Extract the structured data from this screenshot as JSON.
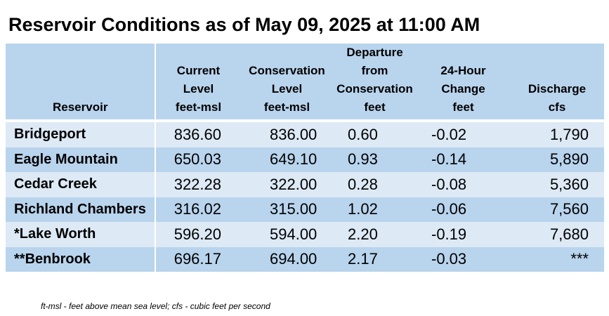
{
  "title": "Reservoir Conditions as of May 09, 2025 at 11:00 AM",
  "columns": [
    {
      "lines": [
        "Reservoir"
      ]
    },
    {
      "lines": [
        "Current",
        "Level",
        "feet-msl"
      ]
    },
    {
      "lines": [
        "Conservation",
        "Level",
        "feet-msl"
      ]
    },
    {
      "lines": [
        "Departure",
        "from",
        "Conservation",
        "feet"
      ]
    },
    {
      "lines": [
        "24-Hour",
        "Change",
        "feet"
      ]
    },
    {
      "lines": [
        "Discharge",
        "cfs"
      ]
    }
  ],
  "rows": [
    {
      "reservoir": "Bridgeport",
      "current_level": "836.60",
      "conservation_level": "836.00",
      "departure": "0.60",
      "change_24h": "-0.02",
      "discharge": "1,790"
    },
    {
      "reservoir": "Eagle Mountain",
      "current_level": "650.03",
      "conservation_level": "649.10",
      "departure": "0.93",
      "change_24h": "-0.14",
      "discharge": "5,890"
    },
    {
      "reservoir": "Cedar Creek",
      "current_level": "322.28",
      "conservation_level": "322.00",
      "departure": "0.28",
      "change_24h": "-0.08",
      "discharge": "5,360"
    },
    {
      "reservoir": "Richland Chambers",
      "current_level": "316.02",
      "conservation_level": "315.00",
      "departure": "1.02",
      "change_24h": "-0.06",
      "discharge": "7,560"
    },
    {
      "reservoir": "*Lake Worth",
      "current_level": "596.20",
      "conservation_level": "594.00",
      "departure": "2.20",
      "change_24h": "-0.19",
      "discharge": "7,680"
    },
    {
      "reservoir": "**Benbrook",
      "current_level": "696.17",
      "conservation_level": "694.00",
      "departure": "2.17",
      "change_24h": "-0.03",
      "discharge": "***"
    }
  ],
  "footnote": "ft-msl - feet above mean sea level; cfs - cubic feet per second",
  "colors": {
    "header_bg": "#b9d4ed",
    "row_light": "#dde9f5",
    "row_dark": "#b9d4ed"
  }
}
